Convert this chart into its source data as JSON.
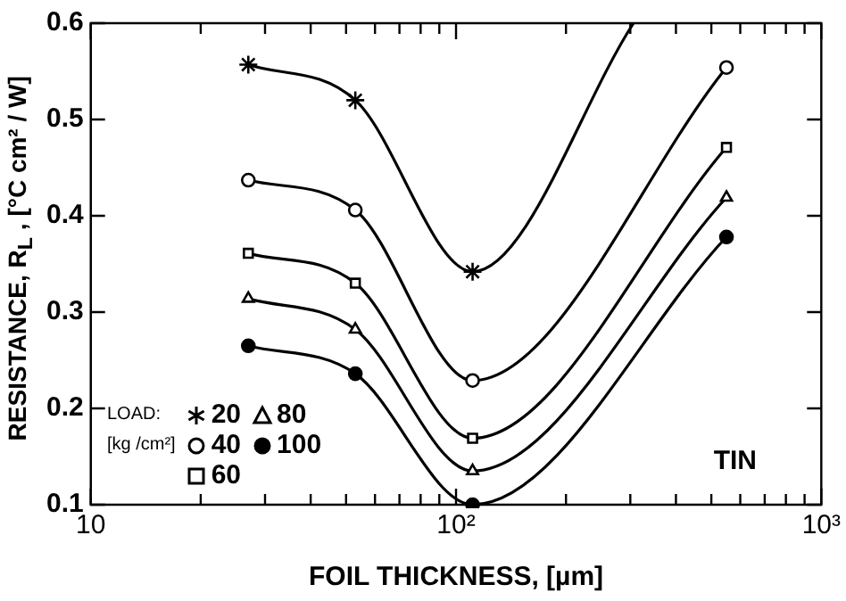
{
  "chart_data": {
    "type": "line",
    "xlabel": "FOIL THICKNESS, [µm]",
    "ylabel": "RESISTANCE, R$_{L}$ , [°C cm² / W]",
    "legend_title": "LOAD:\n[kg /cm²]",
    "legend": "bottom left",
    "log": "x",
    "annotations": [
      "TIN"
    ],
    "xlim": [
      10,
      1000
    ],
    "ylim": [
      0.1,
      0.6
    ],
    "xticks": [
      {
        "value": 10,
        "label": "10"
      },
      {
        "value": 20,
        "label": null
      },
      {
        "value": 30,
        "label": null
      },
      {
        "value": 40,
        "label": null
      },
      {
        "value": 50,
        "label": null
      },
      {
        "value": 60,
        "label": null
      },
      {
        "value": 70,
        "label": null
      },
      {
        "value": 80,
        "label": null
      },
      {
        "value": 90,
        "label": null
      },
      {
        "value": 100,
        "label": "10²"
      },
      {
        "value": 200,
        "label": null
      },
      {
        "value": 300,
        "label": null
      },
      {
        "value": 400,
        "label": null
      },
      {
        "value": 500,
        "label": null
      },
      {
        "value": 600,
        "label": null
      },
      {
        "value": 700,
        "label": null
      },
      {
        "value": 800,
        "label": null
      },
      {
        "value": 900,
        "label": null
      },
      {
        "value": 1000,
        "label": "10³"
      }
    ],
    "yticks": [
      0.1,
      0.2,
      0.3,
      0.4,
      0.5,
      0.6
    ],
    "series": [
      {
        "name": "20",
        "color": "#000000",
        "marker": "cross",
        "x": [
          27,
          53,
          111,
          306
        ],
        "values": [
          0.557,
          0.52,
          0.342,
          0.6
        ]
      },
      {
        "name": "40",
        "color": "#000000",
        "marker": "circle",
        "x": [
          27,
          53,
          111,
          550
        ],
        "values": [
          0.437,
          0.406,
          0.229,
          0.554
        ]
      },
      {
        "name": "60",
        "color": "#000000",
        "marker": "square",
        "x": [
          27,
          53,
          111,
          550
        ],
        "values": [
          0.361,
          0.33,
          0.169,
          0.471
        ]
      },
      {
        "name": "80",
        "color": "#000000",
        "marker": "triangle",
        "x": [
          27,
          53,
          111,
          550
        ],
        "values": [
          0.314,
          0.282,
          0.135,
          0.419
        ]
      },
      {
        "name": "100",
        "color": "#000000",
        "marker": "filled-circle",
        "x": [
          27,
          53,
          111,
          550
        ],
        "values": [
          0.265,
          0.236,
          0.1,
          0.378
        ]
      }
    ]
  }
}
